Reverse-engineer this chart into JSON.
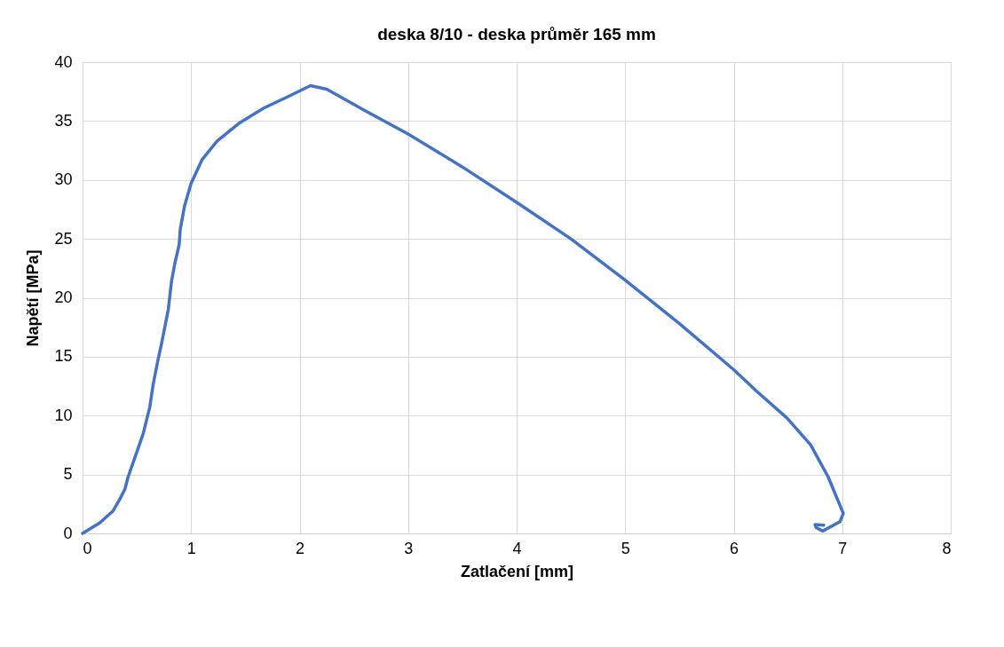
{
  "chart_data": {
    "type": "line",
    "title": "deska 8/10 - deska průměr 165 mm",
    "xlabel": "Zatlačení [mm]",
    "ylabel": "Napětí [MPa]",
    "x": [
      0,
      0.16,
      0.28,
      0.34,
      0.39,
      0.42,
      0.5,
      0.56,
      0.62,
      0.65,
      0.69,
      0.73,
      0.79,
      0.82,
      0.85,
      0.89,
      0.9,
      0.94,
      1.0,
      1.1,
      1.24,
      1.44,
      1.67,
      1.9,
      2.1,
      2.25,
      2.6,
      3,
      3.5,
      4,
      4.5,
      5,
      5.5,
      6,
      6.22,
      6.49,
      6.71,
      6.87,
      7.01,
      6.98,
      6.82,
      6.76,
      6.75,
      6.83
    ],
    "series": [
      {
        "color": "#4472c4",
        "values": [
          0,
          0.9,
          1.9,
          2.85,
          3.75,
          4.8,
          6.9,
          8.5,
          10.75,
          12.6,
          14.5,
          16.2,
          19.0,
          21.4,
          22.9,
          24.5,
          25.8,
          27.8,
          29.7,
          31.7,
          33.3,
          34.8,
          36.1,
          37.1,
          38.0,
          37.7,
          35.9,
          33.9,
          31.1,
          28.1,
          25.0,
          21.5,
          17.8,
          13.9,
          12.0,
          9.8,
          7.5,
          4.8,
          1.7,
          1.0,
          0.2,
          0.5,
          0.75,
          0.7
        ]
      }
    ],
    "xlim": [
      0,
      8
    ],
    "xticks": [
      0,
      1,
      2,
      3,
      4,
      5,
      6,
      7,
      8
    ],
    "ylim": [
      0,
      40
    ],
    "yticks": [
      0,
      5,
      10,
      15,
      20,
      25,
      30,
      35,
      40
    ],
    "grid": true,
    "marker": "none",
    "line_style": "solid"
  }
}
